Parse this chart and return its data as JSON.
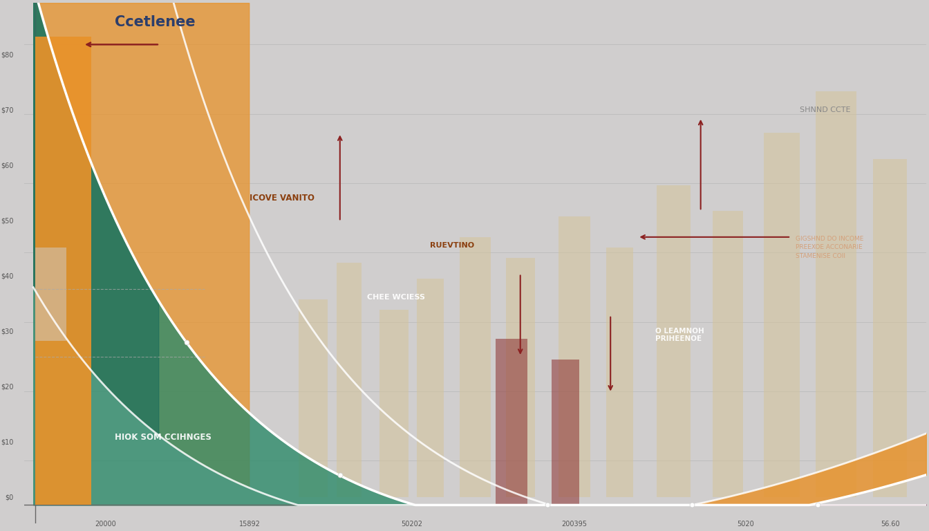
{
  "background_color": "#d0cece",
  "curve_color": "#ffffff",
  "orange_color": "#E8922A",
  "green_color": "#2E8B6A",
  "blue_color": "#4A7BA8",
  "pink_color": "#C4526A",
  "purple_color": "#6B4E7E",
  "teal_dark": "#1a6b5a",
  "beige_bar_color": "#D4C49A",
  "red_bar_color": "#8B3030",
  "label_consumer_confidence": "Ccetlenee",
  "label_income": "ICOVE VANITO",
  "label_related": "RUEVTINO",
  "label_consumer_choices": "CHEE WCIESS",
  "label_substitutes": "O LEAMNOH\nPRIHEENOE",
  "label_standard_cost": "SHNND CCTE",
  "label_price_income": "GIGSHND DO INCOME\nPREEXOE ACCONARIE\nSTAMENISE COII",
  "label_income_changes": "HIOK SOM CCIHNGES",
  "arrow_color": "#8B2020",
  "grid_line_color": "#b0b0b0"
}
